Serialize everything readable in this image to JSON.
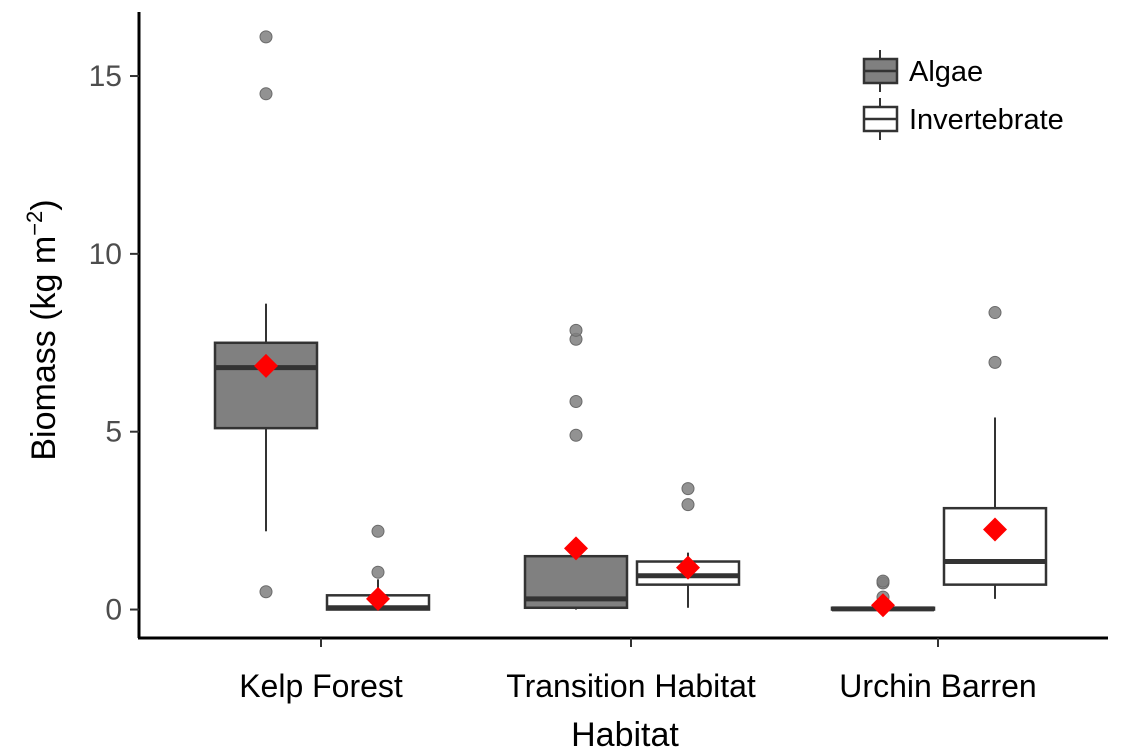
{
  "chart_data": {
    "type": "boxplot",
    "xlabel": "Habitat",
    "ylabel_main": "Biomass (kg m",
    "ylabel_sup": "−2",
    "ylabel_close": ")",
    "ylim": [
      -0.8,
      16.8
    ],
    "y_ticks": [
      0,
      5,
      10,
      15
    ],
    "y_tick_labels": [
      "0",
      "5",
      "10",
      "15"
    ],
    "categories": [
      "Kelp Forest",
      "Transition Habitat",
      "Urchin Barren"
    ],
    "grid": false,
    "legend_position": "top-right",
    "mean_marker_color": "#ff0000",
    "outlier_color": "#7f7f7f",
    "series": [
      {
        "name": "Algae",
        "fill": "#808080",
        "boxes": [
          {
            "q1": 5.1,
            "median": 6.8,
            "q3": 7.5,
            "whisker_low": 2.2,
            "whisker_high": 8.6,
            "mean": 6.85,
            "outliers": [
              0.5,
              14.5,
              16.1
            ]
          },
          {
            "q1": 0.05,
            "median": 0.3,
            "q3": 1.5,
            "whisker_low": 0.0,
            "whisker_high": 1.5,
            "mean": 1.72,
            "outliers": [
              4.9,
              5.85,
              7.6,
              7.85
            ]
          },
          {
            "q1": 0.0,
            "median": 0.02,
            "q3": 0.05,
            "whisker_low": 0.0,
            "whisker_high": 0.05,
            "mean": 0.12,
            "outliers": [
              0.35,
              0.75,
              0.8
            ]
          }
        ]
      },
      {
        "name": "Invertebrate",
        "fill": "#ffffff",
        "boxes": [
          {
            "q1": 0.0,
            "median": 0.05,
            "q3": 0.4,
            "whisker_low": 0.0,
            "whisker_high": 0.85,
            "mean": 0.3,
            "outliers": [
              1.05,
              2.2
            ]
          },
          {
            "q1": 0.7,
            "median": 0.95,
            "q3": 1.35,
            "whisker_low": 0.05,
            "whisker_high": 1.6,
            "mean": 1.18,
            "outliers": [
              2.95,
              3.4
            ]
          },
          {
            "q1": 0.7,
            "median": 1.35,
            "q3": 2.85,
            "whisker_low": 0.3,
            "whisker_high": 5.4,
            "mean": 2.25,
            "outliers": [
              6.95,
              8.35
            ]
          }
        ]
      }
    ]
  }
}
